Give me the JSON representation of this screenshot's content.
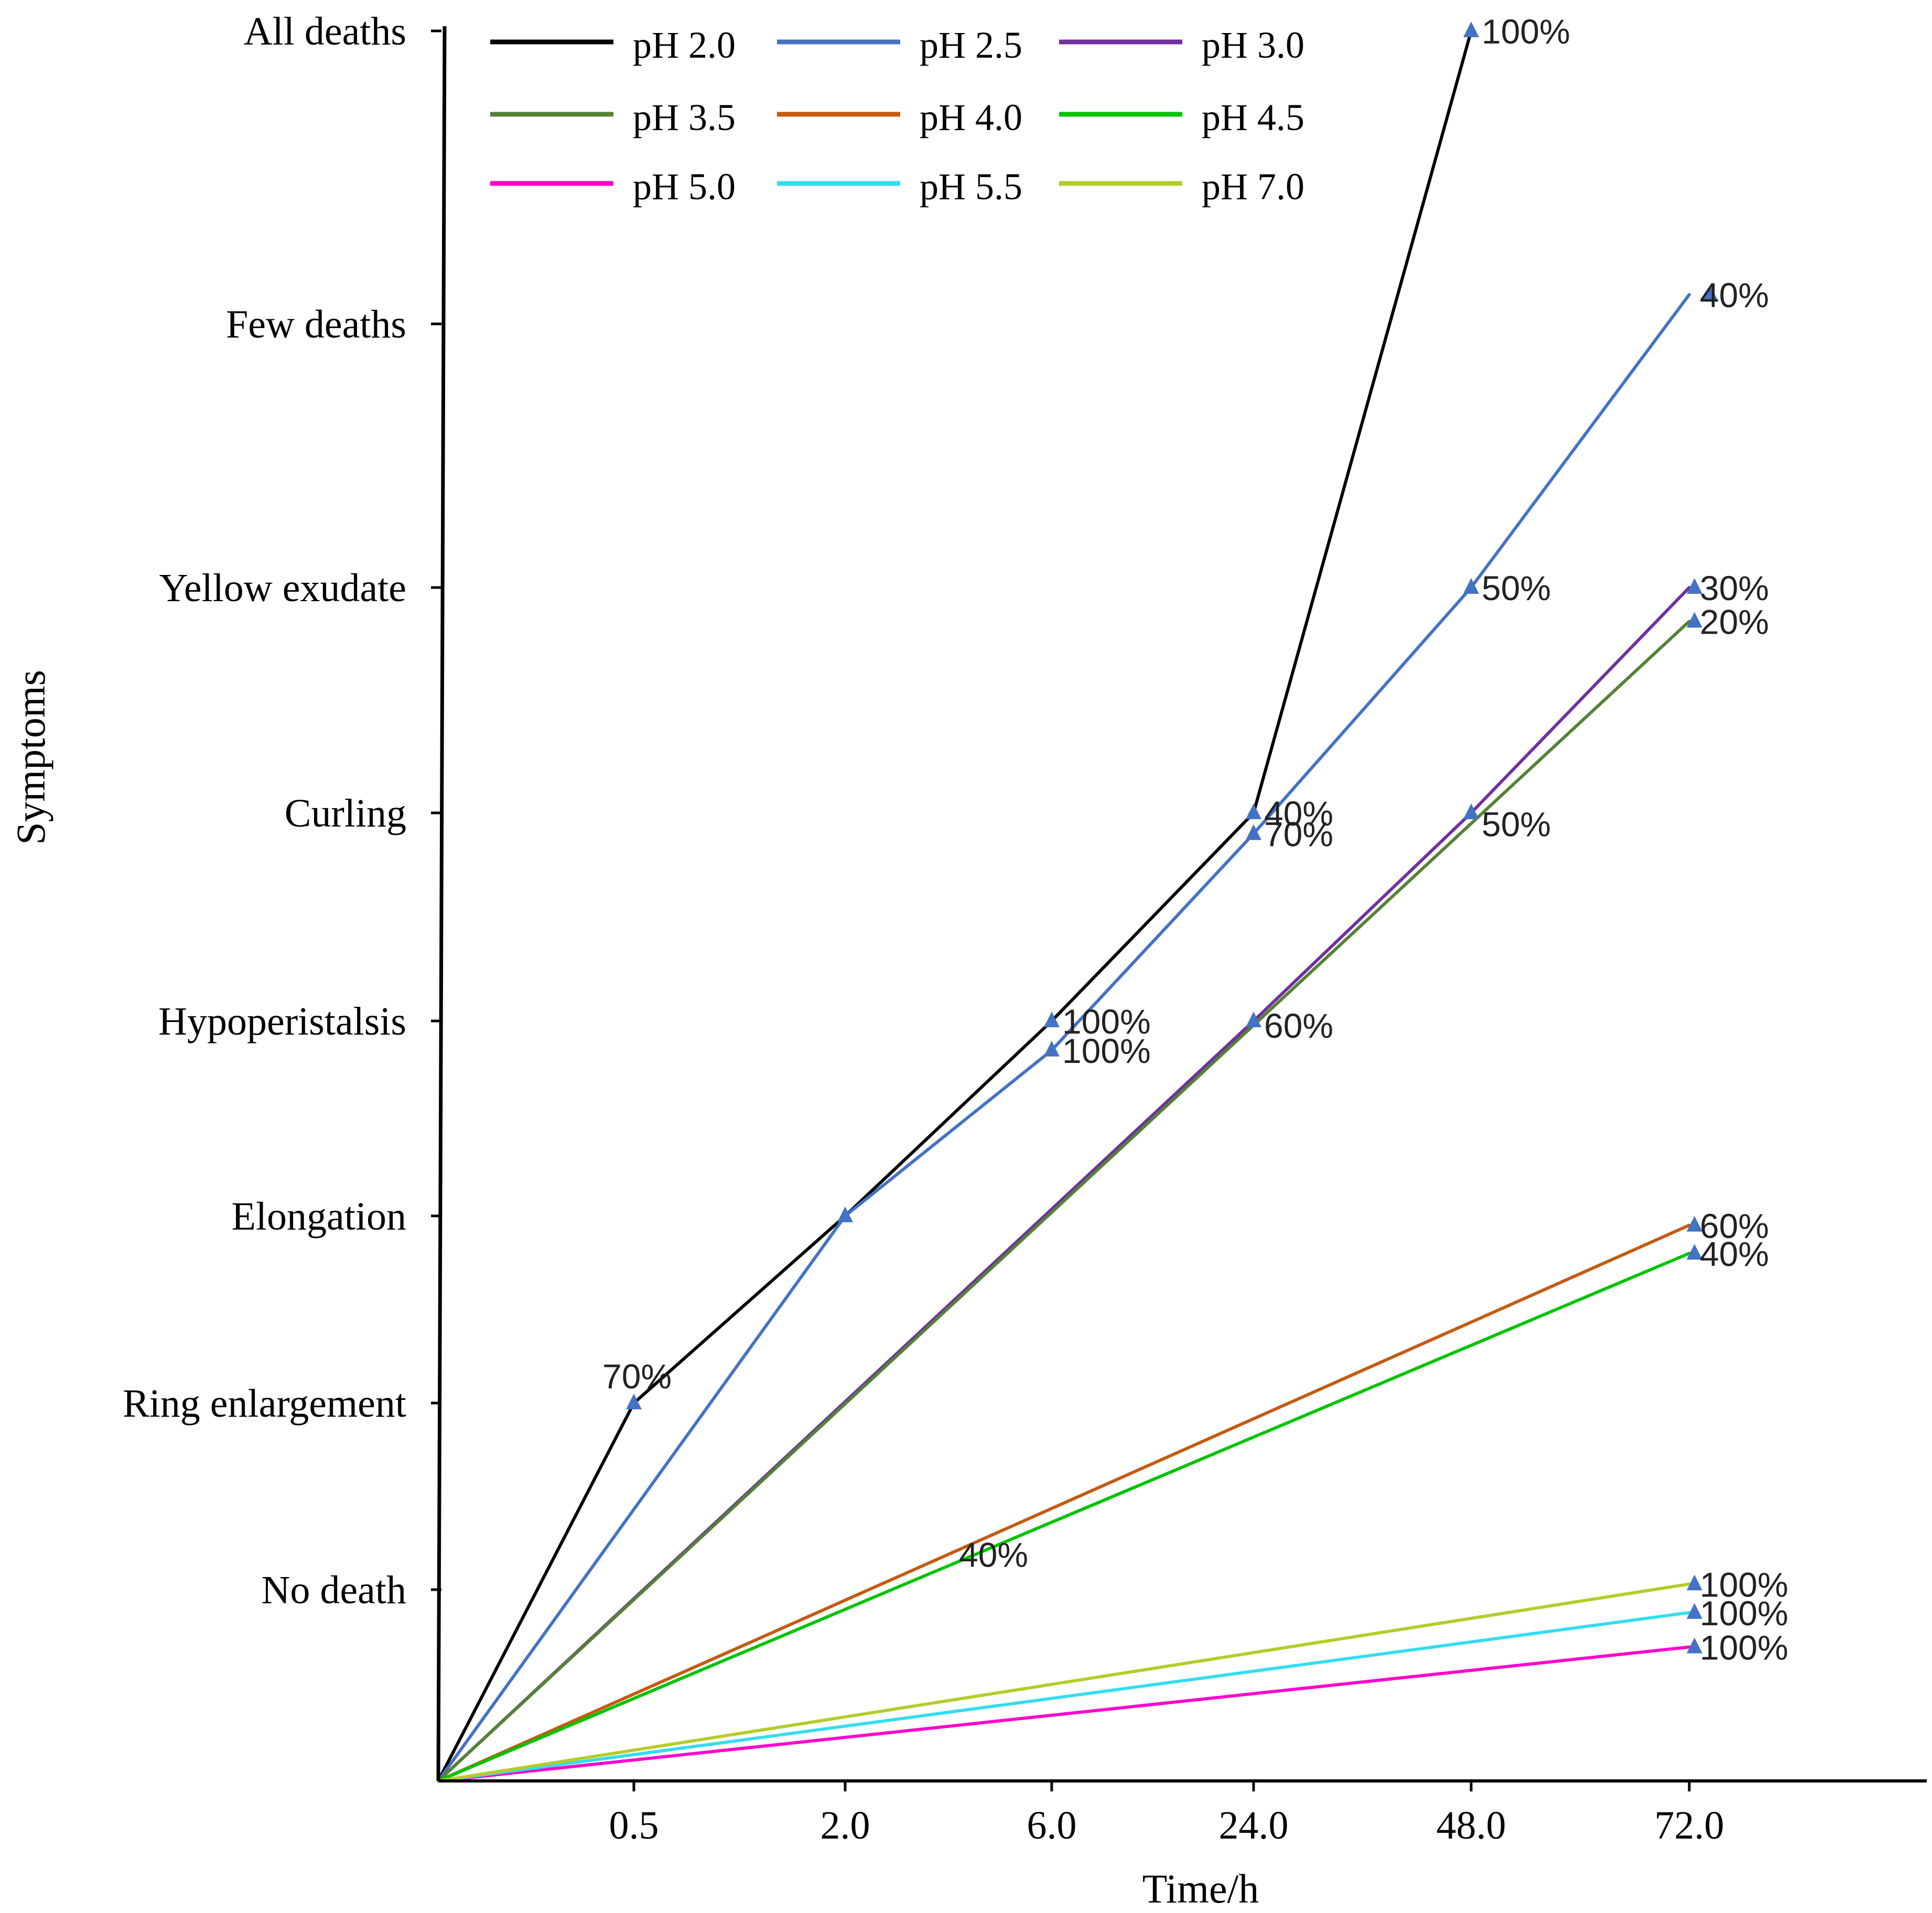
{
  "chart_data": {
    "type": "line",
    "title": "",
    "xlabel": "Time/h",
    "ylabel": "Symptoms",
    "categories": [
      "0.5",
      "2.0",
      "6.0",
      "24.0",
      "48.0",
      "72.0"
    ],
    "y_levels": [
      "No death",
      "Ring enlargement",
      "Elongation",
      "Hypoperistalsis",
      "Curling",
      "Yellow exudate",
      "Few deaths",
      "All deaths"
    ],
    "y_range": [
      0,
      8
    ],
    "legend_position": "top-left",
    "grid": false,
    "series": [
      {
        "name": "pH 2.0",
        "color": "#000000",
        "x": [
          0,
          0.5,
          2.0,
          6.0,
          24.0,
          48.0
        ],
        "y": [
          0,
          2.0,
          3.0,
          4.0,
          5.0,
          8.0
        ],
        "labels": [
          {
            "x": 0.5,
            "text": "70%"
          },
          {
            "x": 6.0,
            "text": "100%"
          },
          {
            "x": 24.0,
            "text": "40%"
          },
          {
            "x": 48.0,
            "text": "100%"
          }
        ]
      },
      {
        "name": "pH 2.5",
        "color": "#4472C4",
        "x": [
          0,
          2.0,
          6.0,
          24.0,
          48.0,
          72.0
        ],
        "y": [
          0,
          3.0,
          3.85,
          4.9,
          6.0,
          7.1
        ],
        "labels": [
          {
            "x": 6.0,
            "text": "100%"
          },
          {
            "x": 24.0,
            "text": "70%"
          },
          {
            "x": 48.0,
            "text": "50%"
          },
          {
            "x": 72.0,
            "text": "40%"
          }
        ]
      },
      {
        "name": "pH 3.0",
        "color": "#7030A0",
        "x": [
          0,
          24.0,
          48.0,
          72.0
        ],
        "y": [
          0,
          4.0,
          5.0,
          6.0
        ],
        "labels": [
          {
            "x": 72.0,
            "text": "30%"
          }
        ]
      },
      {
        "name": "pH 3.5",
        "color": "#548235",
        "x": [
          0,
          72.0
        ],
        "y": [
          0,
          5.85
        ],
        "labels": [
          {
            "x": 24.0,
            "text": "60%"
          },
          {
            "x": 48.0,
            "text": "50%"
          },
          {
            "x": 72.0,
            "text": "20%"
          }
        ]
      },
      {
        "name": "pH 4.0",
        "color": "#C55A11",
        "x": [
          0,
          72.0
        ],
        "y": [
          0,
          2.95
        ],
        "labels": [
          {
            "x": 4.0,
            "text": "40%"
          },
          {
            "x": 72.0,
            "text": "60%"
          }
        ]
      },
      {
        "name": "pH 4.5",
        "color": "#00C400",
        "x": [
          0,
          72.0
        ],
        "y": [
          0,
          2.8
        ],
        "labels": [
          {
            "x": 72.0,
            "text": "40%"
          }
        ]
      },
      {
        "name": "pH 5.0",
        "color": "#FF00CC",
        "x": [
          0,
          72.0
        ],
        "y": [
          0,
          0.7
        ],
        "labels": [
          {
            "x": 72.0,
            "text": "100%"
          }
        ]
      },
      {
        "name": "pH 5.5",
        "color": "#33DDF0",
        "x": [
          0,
          72.0
        ],
        "y": [
          0,
          0.88
        ],
        "labels": [
          {
            "x": 72.0,
            "text": "100%"
          }
        ]
      },
      {
        "name": "pH 7.0",
        "color": "#B5CC2A",
        "x": [
          0,
          72.0
        ],
        "y": [
          0,
          1.03
        ],
        "labels": [
          {
            "x": 72.0,
            "text": "100%"
          }
        ]
      }
    ],
    "marker_color": "#4472C4",
    "axis_color": "#000000"
  }
}
